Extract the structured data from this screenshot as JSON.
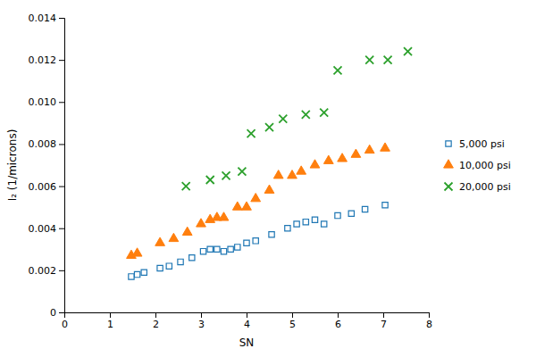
{
  "chart_data": {
    "type": "scatter",
    "xlabel": "SN",
    "ylabel": "I₂ (1/microns)",
    "xlim": [
      0,
      8
    ],
    "ylim": [
      0,
      0.014
    ],
    "xticks": [
      0,
      1,
      2,
      3,
      4,
      5,
      6,
      7,
      8
    ],
    "yticks": [
      0,
      0.002,
      0.004,
      0.006,
      0.008,
      {
        "value": 0.01,
        "label": "0.010"
      },
      0.012,
      0.014
    ],
    "grid": false,
    "legend": "right",
    "series": [
      {
        "name": "5,000 psi",
        "marker": "square-open",
        "x": [
          1.47,
          1.6,
          1.75,
          2.1,
          2.3,
          2.55,
          2.8,
          3.05,
          3.2,
          3.35,
          3.5,
          3.65,
          3.8,
          4.0,
          4.2,
          4.55,
          4.9,
          5.1,
          5.3,
          5.5,
          5.7,
          6.0,
          6.3,
          6.6,
          7.04
        ],
        "values": [
          0.0017,
          0.0018,
          0.0019,
          0.0021,
          0.0022,
          0.0024,
          0.0026,
          0.0029,
          0.003,
          0.003,
          0.0029,
          0.003,
          0.0031,
          0.0033,
          0.0034,
          0.0037,
          0.004,
          0.0042,
          0.0043,
          0.0044,
          0.0042,
          0.0046,
          0.0047,
          0.0049,
          0.0051
        ]
      },
      {
        "name": "10,000 psi",
        "marker": "triangle",
        "x": [
          1.47,
          1.6,
          2.1,
          2.4,
          2.7,
          3.0,
          3.2,
          3.35,
          3.5,
          3.8,
          4.0,
          4.2,
          4.5,
          4.7,
          5.0,
          5.2,
          5.5,
          5.8,
          6.1,
          6.4,
          6.7,
          7.04
        ],
        "values": [
          0.0027,
          0.0028,
          0.0033,
          0.0035,
          0.0038,
          0.0042,
          0.0044,
          0.0045,
          0.0045,
          0.005,
          0.005,
          0.0054,
          0.0058,
          0.0065,
          0.0065,
          0.0067,
          0.007,
          0.0072,
          0.0073,
          0.0075,
          0.0077,
          0.0078
        ]
      },
      {
        "name": "20,000 psi",
        "marker": "x",
        "x": [
          2.67,
          3.2,
          3.55,
          3.9,
          4.1,
          4.5,
          4.8,
          5.3,
          5.7,
          6.0,
          6.7,
          7.1,
          7.54
        ],
        "values": [
          0.006,
          0.0063,
          0.0065,
          0.0067,
          0.0085,
          0.0088,
          0.0092,
          0.0094,
          0.0095,
          0.0115,
          0.012,
          0.012,
          0.0124
        ]
      }
    ]
  }
}
